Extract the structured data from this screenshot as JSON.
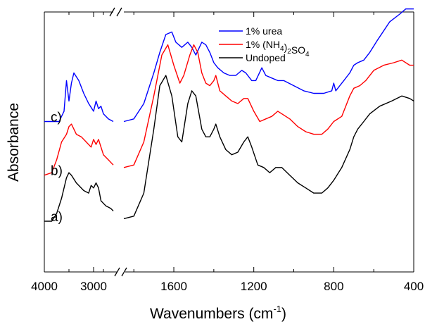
{
  "chart_data": {
    "type": "line",
    "title": "",
    "xlabel": {
      "main": "Wavenumbers (cm",
      "sup": "-1",
      "tail": ")"
    },
    "ylabel": "Absorbance",
    "x_axis": {
      "reversed": true,
      "broken": true,
      "segments": [
        {
          "range": [
            4000,
            2600
          ]
        },
        {
          "range": [
            1850,
            400
          ]
        }
      ],
      "tick_labels": [
        "4000",
        "3000",
        "1600",
        "1200",
        "800",
        "400"
      ]
    },
    "y_ticks_shown": false,
    "legend": {
      "position": "top-right",
      "entries": [
        {
          "key": "urea",
          "parts": [
            [
              "1% urea",
              ""
            ]
          ]
        },
        {
          "key": "nh4",
          "parts": [
            [
              "1% (NH",
              ""
            ],
            [
              "4",
              "sub"
            ],
            [
              ")",
              ""
            ],
            [
              "2",
              "sub"
            ],
            [
              "SO",
              ""
            ],
            [
              "4",
              "sub"
            ]
          ]
        },
        {
          "key": "undoped",
          "parts": [
            [
              "Undoped",
              ""
            ]
          ]
        }
      ]
    },
    "series": [
      {
        "key": "urea",
        "name": "1% urea",
        "label": "c)",
        "color": "#0000ff",
        "segments": [
          [
            [
              4000,
              0.58
            ],
            [
              3700,
              0.58
            ],
            [
              3600,
              0.62
            ],
            [
              3550,
              0.74
            ],
            [
              3500,
              0.66
            ],
            [
              3450,
              0.73
            ],
            [
              3400,
              0.77
            ],
            [
              3300,
              0.74
            ],
            [
              3200,
              0.69
            ],
            [
              3100,
              0.65
            ],
            [
              3000,
              0.62
            ],
            [
              2950,
              0.66
            ],
            [
              2900,
              0.63
            ],
            [
              2850,
              0.64
            ],
            [
              2800,
              0.61
            ],
            [
              2700,
              0.59
            ],
            [
              2600,
              0.58
            ]
          ],
          [
            [
              1850,
              0.58
            ],
            [
              1800,
              0.59
            ],
            [
              1750,
              0.65
            ],
            [
              1700,
              0.77
            ],
            [
              1670,
              0.85
            ],
            [
              1640,
              0.92
            ],
            [
              1610,
              0.93
            ],
            [
              1590,
              0.89
            ],
            [
              1560,
              0.87
            ],
            [
              1530,
              0.89
            ],
            [
              1510,
              0.87
            ],
            [
              1490,
              0.84
            ],
            [
              1460,
              0.89
            ],
            [
              1440,
              0.88
            ],
            [
              1420,
              0.85
            ],
            [
              1400,
              0.81
            ],
            [
              1380,
              0.79
            ],
            [
              1350,
              0.77
            ],
            [
              1320,
              0.76
            ],
            [
              1290,
              0.76
            ],
            [
              1260,
              0.78
            ],
            [
              1240,
              0.77
            ],
            [
              1210,
              0.74
            ],
            [
              1190,
              0.74
            ],
            [
              1160,
              0.79
            ],
            [
              1140,
              0.76
            ],
            [
              1110,
              0.75
            ],
            [
              1080,
              0.74
            ],
            [
              1050,
              0.74
            ],
            [
              1000,
              0.72
            ],
            [
              950,
              0.7
            ],
            [
              900,
              0.69
            ],
            [
              850,
              0.69
            ],
            [
              810,
              0.7
            ],
            [
              800,
              0.73
            ],
            [
              790,
              0.7
            ],
            [
              750,
              0.74
            ],
            [
              720,
              0.77
            ],
            [
              700,
              0.8
            ],
            [
              680,
              0.81
            ],
            [
              650,
              0.82
            ],
            [
              620,
              0.85
            ],
            [
              580,
              0.9
            ],
            [
              520,
              0.97
            ],
            [
              470,
              1.0
            ],
            [
              440,
              1.02
            ],
            [
              410,
              1.02
            ],
            [
              400,
              1.02
            ]
          ]
        ]
      },
      {
        "key": "nh4",
        "name": "1% (NH4)2SO4",
        "label": "b)",
        "color": "#ff0000",
        "segments": [
          [
            [
              4000,
              0.37
            ],
            [
              3850,
              0.38
            ],
            [
              3750,
              0.43
            ],
            [
              3650,
              0.5
            ],
            [
              3550,
              0.53
            ],
            [
              3500,
              0.56
            ],
            [
              3450,
              0.57
            ],
            [
              3350,
              0.53
            ],
            [
              3250,
              0.52
            ],
            [
              3150,
              0.5
            ],
            [
              3050,
              0.48
            ],
            [
              3000,
              0.51
            ],
            [
              2950,
              0.49
            ],
            [
              2900,
              0.51
            ],
            [
              2800,
              0.45
            ],
            [
              2700,
              0.43
            ],
            [
              2600,
              0.41
            ]
          ],
          [
            [
              1850,
              0.4
            ],
            [
              1800,
              0.41
            ],
            [
              1750,
              0.5
            ],
            [
              1700,
              0.68
            ],
            [
              1660,
              0.84
            ],
            [
              1630,
              0.88
            ],
            [
              1600,
              0.8
            ],
            [
              1570,
              0.73
            ],
            [
              1550,
              0.76
            ],
            [
              1520,
              0.84
            ],
            [
              1500,
              0.88
            ],
            [
              1480,
              0.85
            ],
            [
              1460,
              0.77
            ],
            [
              1440,
              0.73
            ],
            [
              1420,
              0.72
            ],
            [
              1400,
              0.74
            ],
            [
              1390,
              0.76
            ],
            [
              1370,
              0.7
            ],
            [
              1340,
              0.68
            ],
            [
              1310,
              0.66
            ],
            [
              1280,
              0.65
            ],
            [
              1250,
              0.67
            ],
            [
              1230,
              0.67
            ],
            [
              1200,
              0.62
            ],
            [
              1170,
              0.58
            ],
            [
              1140,
              0.59
            ],
            [
              1110,
              0.6
            ],
            [
              1080,
              0.62
            ],
            [
              1060,
              0.61
            ],
            [
              1020,
              0.59
            ],
            [
              980,
              0.56
            ],
            [
              940,
              0.54
            ],
            [
              900,
              0.53
            ],
            [
              860,
              0.53
            ],
            [
              830,
              0.55
            ],
            [
              800,
              0.58
            ],
            [
              760,
              0.6
            ],
            [
              720,
              0.68
            ],
            [
              700,
              0.71
            ],
            [
              670,
              0.72
            ],
            [
              640,
              0.74
            ],
            [
              600,
              0.78
            ],
            [
              550,
              0.8
            ],
            [
              500,
              0.81
            ],
            [
              460,
              0.82
            ],
            [
              420,
              0.8
            ],
            [
              400,
              0.8
            ]
          ]
        ]
      },
      {
        "key": "undoped",
        "name": "Undoped",
        "label": "a)",
        "color": "#000000",
        "segments": [
          [
            [
              4000,
              0.19
            ],
            [
              3850,
              0.19
            ],
            [
              3750,
              0.22
            ],
            [
              3650,
              0.28
            ],
            [
              3550,
              0.36
            ],
            [
              3500,
              0.38
            ],
            [
              3450,
              0.37
            ],
            [
              3350,
              0.34
            ],
            [
              3200,
              0.31
            ],
            [
              3100,
              0.3
            ],
            [
              3050,
              0.33
            ],
            [
              3000,
              0.32
            ],
            [
              2950,
              0.34
            ],
            [
              2900,
              0.32
            ],
            [
              2850,
              0.27
            ],
            [
              2750,
              0.25
            ],
            [
              2650,
              0.24
            ],
            [
              2600,
              0.23
            ]
          ],
          [
            [
              1850,
              0.2
            ],
            [
              1800,
              0.21
            ],
            [
              1750,
              0.3
            ],
            [
              1700,
              0.55
            ],
            [
              1670,
              0.72
            ],
            [
              1640,
              0.76
            ],
            [
              1610,
              0.68
            ],
            [
              1580,
              0.52
            ],
            [
              1560,
              0.5
            ],
            [
              1530,
              0.65
            ],
            [
              1510,
              0.7
            ],
            [
              1490,
              0.68
            ],
            [
              1460,
              0.55
            ],
            [
              1440,
              0.52
            ],
            [
              1420,
              0.52
            ],
            [
              1400,
              0.55
            ],
            [
              1390,
              0.57
            ],
            [
              1370,
              0.52
            ],
            [
              1340,
              0.47
            ],
            [
              1310,
              0.45
            ],
            [
              1280,
              0.46
            ],
            [
              1250,
              0.5
            ],
            [
              1230,
              0.52
            ],
            [
              1210,
              0.48
            ],
            [
              1180,
              0.41
            ],
            [
              1150,
              0.4
            ],
            [
              1120,
              0.38
            ],
            [
              1090,
              0.4
            ],
            [
              1060,
              0.4
            ],
            [
              1020,
              0.37
            ],
            [
              980,
              0.34
            ],
            [
              940,
              0.32
            ],
            [
              900,
              0.3
            ],
            [
              860,
              0.3
            ],
            [
              830,
              0.32
            ],
            [
              800,
              0.35
            ],
            [
              760,
              0.4
            ],
            [
              720,
              0.47
            ],
            [
              700,
              0.52
            ],
            [
              680,
              0.55
            ],
            [
              650,
              0.58
            ],
            [
              620,
              0.61
            ],
            [
              570,
              0.64
            ],
            [
              510,
              0.66
            ],
            [
              460,
              0.68
            ],
            [
              420,
              0.67
            ],
            [
              400,
              0.66
            ]
          ]
        ]
      }
    ]
  }
}
